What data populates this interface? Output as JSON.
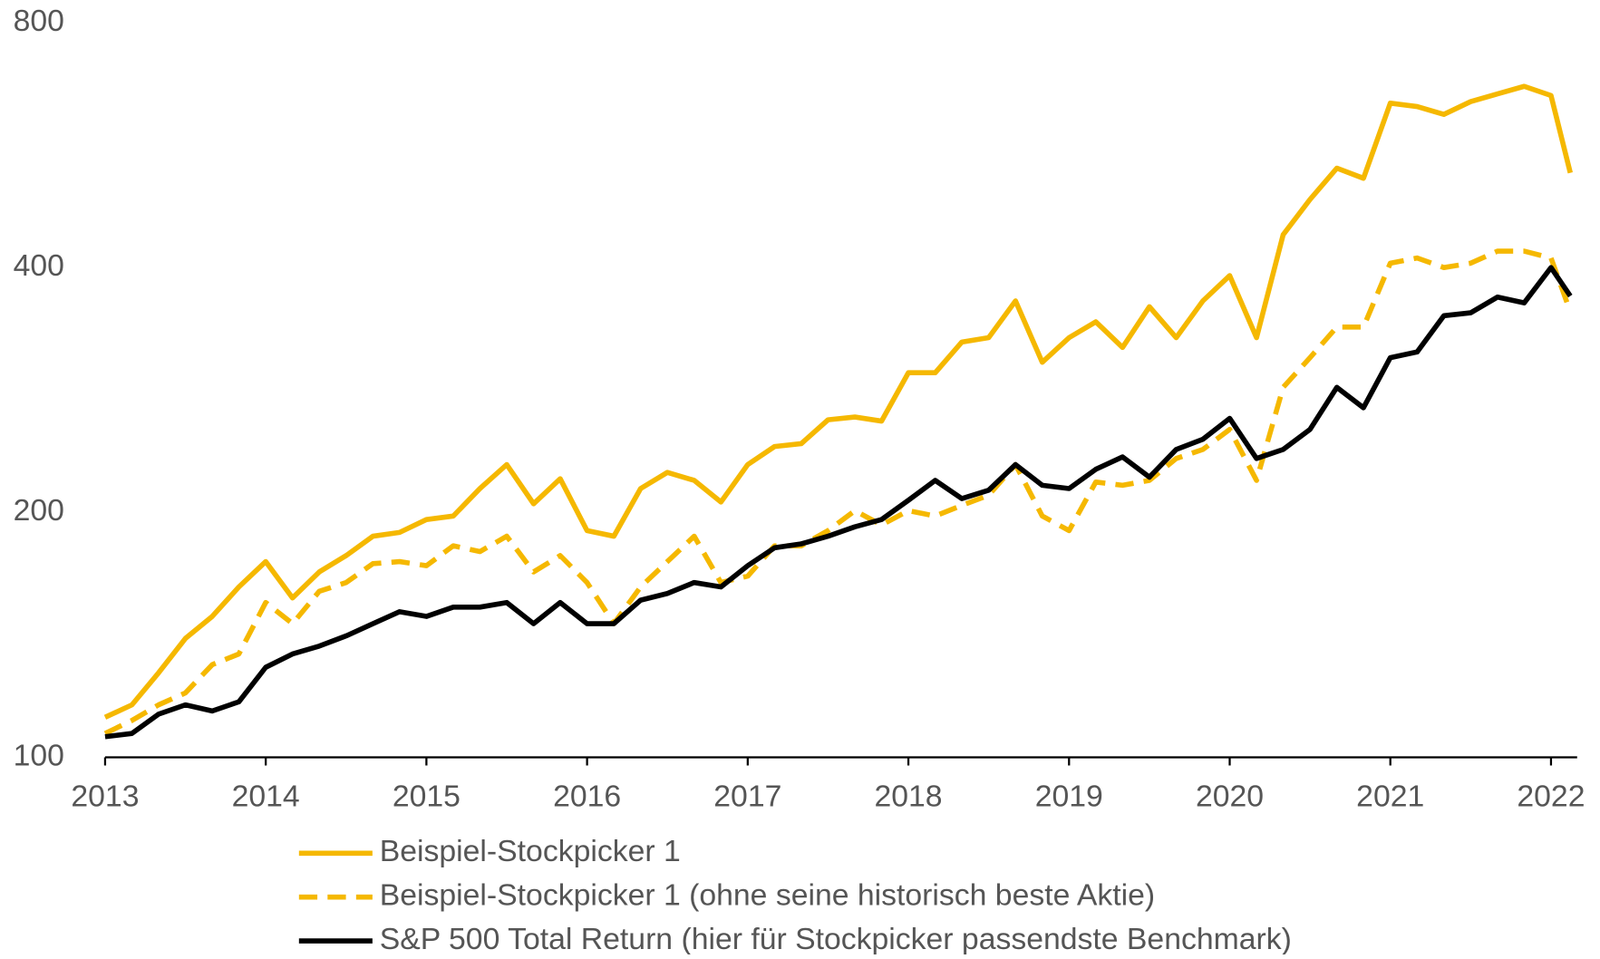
{
  "chart_data": {
    "type": "line",
    "log_scale_y": true,
    "x": [
      2013.0,
      2013.167,
      2013.333,
      2013.5,
      2013.667,
      2013.833,
      2014.0,
      2014.167,
      2014.333,
      2014.5,
      2014.667,
      2014.833,
      2015.0,
      2015.167,
      2015.333,
      2015.5,
      2015.667,
      2015.833,
      2016.0,
      2016.167,
      2016.333,
      2016.5,
      2016.667,
      2016.833,
      2017.0,
      2017.167,
      2017.333,
      2017.5,
      2017.667,
      2017.833,
      2018.0,
      2018.167,
      2018.333,
      2018.5,
      2018.667,
      2018.833,
      2019.0,
      2019.167,
      2019.333,
      2019.5,
      2019.667,
      2019.833,
      2020.0,
      2020.167,
      2020.333,
      2020.5,
      2020.667,
      2020.833,
      2021.0,
      2021.167,
      2021.333,
      2021.5,
      2021.667,
      2021.833,
      2022.0,
      2022.12
    ],
    "series": [
      {
        "name": "Beispiel-Stockpicker 1",
        "color": "#f5b800",
        "dashed": false,
        "values": [
          112,
          116,
          127,
          140,
          149,
          162,
          174,
          157,
          169,
          177,
          187,
          189,
          196,
          198,
          214,
          229,
          205,
          220,
          190,
          187,
          214,
          224,
          219,
          206,
          229,
          241,
          243,
          260,
          262,
          259,
          297,
          297,
          324,
          328,
          364,
          306,
          328,
          343,
          319,
          358,
          328,
          364,
          391,
          328,
          439,
          485,
          530,
          515,
          637,
          631,
          617,
          640,
          654,
          668,
          651,
          523
        ]
      },
      {
        "name": "Beispiel-Stockpicker 1 (ohne seine historisch beste Aktie)",
        "color": "#f5b800",
        "dashed": true,
        "values": [
          107,
          111,
          116,
          120,
          130,
          134,
          155,
          146,
          160,
          164,
          173,
          174,
          172,
          182,
          179,
          187,
          169,
          177,
          164,
          146,
          162,
          174,
          187,
          164,
          167,
          182,
          182,
          190,
          201,
          193,
          201,
          198,
          204,
          210,
          229,
          198,
          190,
          218,
          216,
          219,
          233,
          239,
          253,
          219,
          285,
          310,
          338,
          338,
          405,
          411,
          400,
          405,
          419,
          419,
          411,
          353
        ]
      },
      {
        "name": "S&P 500 Total Return (hier für Stockpicker passendste Benchmark)",
        "color": "#000000",
        "dashed": false,
        "values": [
          106,
          107,
          113,
          116,
          114,
          117,
          129,
          134,
          137,
          141,
          146,
          151,
          149,
          153,
          153,
          155,
          146,
          155,
          146,
          146,
          156,
          159,
          164,
          162,
          172,
          181,
          183,
          187,
          192,
          196,
          207,
          219,
          208,
          213,
          229,
          216,
          214,
          226,
          234,
          221,
          239,
          246,
          261,
          233,
          239,
          253,
          285,
          269,
          310,
          315,
          349,
          352,
          368,
          362,
          400,
          369
        ]
      }
    ],
    "xlim": [
      2013,
      2022.15
    ],
    "xticks": [
      2013,
      2014,
      2015,
      2016,
      2017,
      2018,
      2019,
      2020,
      2021,
      2022
    ],
    "ylim": [
      100,
      800
    ],
    "yticks": [
      100,
      200,
      400,
      800
    ],
    "grid": false
  }
}
